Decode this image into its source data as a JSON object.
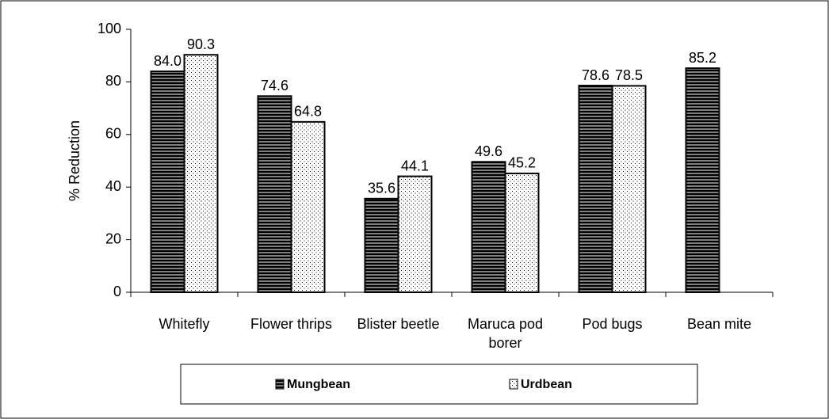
{
  "chart_data": {
    "type": "bar",
    "ylabel": "% Reduction",
    "categories": [
      "Whitefly",
      "Flower thrips",
      "Blister beetle",
      "Maruca pod borer",
      "Pod bugs",
      "Bean mite"
    ],
    "series": [
      {
        "name": "Mungbean",
        "color": "#808080",
        "values": [
          84.0,
          74.6,
          35.6,
          49.6,
          78.6,
          85.2
        ],
        "value_labels": [
          "84.0",
          "74.6",
          "35.6",
          "49.6",
          "78.6",
          "85.2"
        ]
      },
      {
        "name": "Urdbean",
        "color": "#ffffff",
        "values": [
          90.3,
          64.8,
          44.1,
          45.2,
          78.5,
          null
        ],
        "value_labels": [
          "90.3",
          "64.8",
          "44.1",
          "45.2",
          "78.5",
          null
        ]
      }
    ],
    "ylim": [
      0,
      100
    ],
    "yticks": [
      0,
      20,
      40,
      60,
      80,
      100
    ],
    "grid": false,
    "legend": "bottom"
  }
}
